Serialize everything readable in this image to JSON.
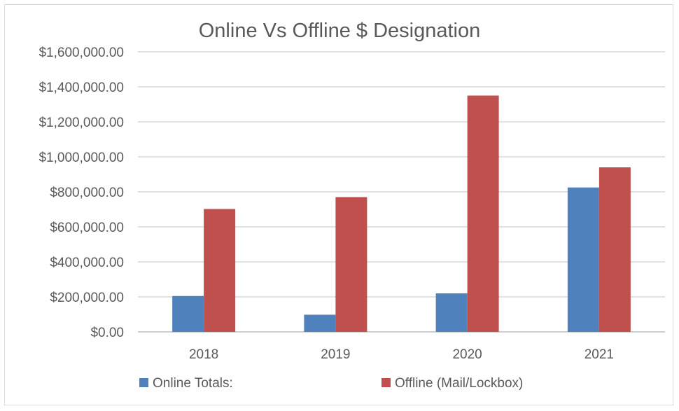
{
  "chart_data": {
    "type": "bar",
    "title": "Online Vs Offline $ Designation",
    "xlabel": "",
    "ylabel": "",
    "categories": [
      "2018",
      "2019",
      "2020",
      "2021"
    ],
    "series": [
      {
        "name": "Online Totals:",
        "color": "#4f81bd",
        "values": [
          205000,
          98000,
          220000,
          825000
        ]
      },
      {
        "name": "Offline (Mail/Lockbox)",
        "color": "#c0504d",
        "values": [
          702000,
          770000,
          1350000,
          940000
        ]
      }
    ],
    "ylim": [
      0,
      1600000
    ],
    "yticks": [
      0,
      200000,
      400000,
      600000,
      800000,
      1000000,
      1200000,
      1400000,
      1600000
    ],
    "ytick_labels": [
      "$0.00",
      "$200,000.00",
      "$400,000.00",
      "$600,000.00",
      "$800,000.00",
      "$1,000,000.00",
      "$1,200,000.00",
      "$1,400,000.00",
      "$1,600,000.00"
    ],
    "grid": true,
    "legend_position": "bottom"
  }
}
